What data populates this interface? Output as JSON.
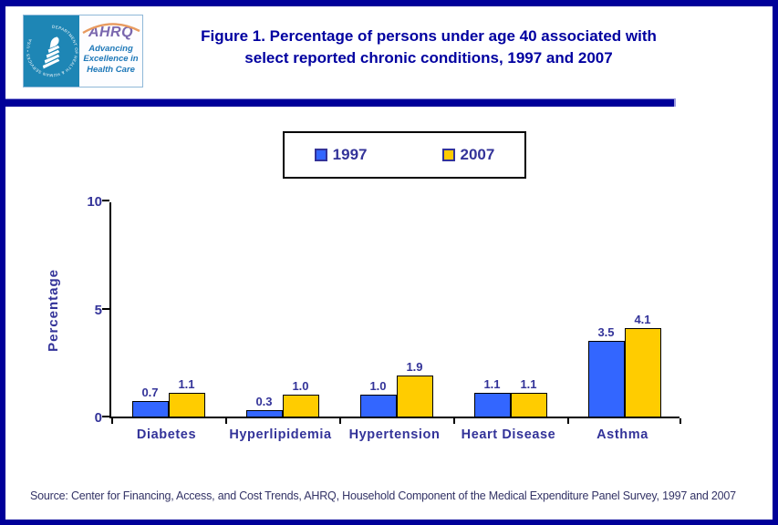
{
  "logo": {
    "hhs_circle_text": "DEPARTMENT OF HEALTH & HUMAN SERVICES • USA",
    "ahrq_word": "AHRQ",
    "tagline": "Advancing\nExcellence in\nHealth Care"
  },
  "header": {
    "title_line1": "Figure 1. Percentage of persons under age 40 associated with",
    "title_line2": "select reported chronic conditions, 1997 and 2007"
  },
  "chart_data": {
    "type": "bar",
    "title": "Figure 1. Percentage of persons under age 40 associated with select reported chronic conditions, 1997 and 2007",
    "categories": [
      "Diabetes",
      "Hyperlipidemia",
      "Hypertension",
      "Heart Disease",
      "Asthma"
    ],
    "series": [
      {
        "name": "1997",
        "color": "#3366FF",
        "values": [
          0.7,
          0.3,
          1.0,
          1.1,
          3.5
        ]
      },
      {
        "name": "2007",
        "color": "#FFCC00",
        "values": [
          1.1,
          1.0,
          1.9,
          1.1,
          4.1
        ]
      }
    ],
    "xlabel": "",
    "ylabel": "Percentage",
    "ylim": [
      0,
      10
    ],
    "yticks": [
      0,
      5,
      10
    ],
    "grid": false,
    "data_labels": true,
    "legend_position": "top-center",
    "bar_border_color": "#000000",
    "axis_color": "#000000",
    "text_color": "#333399",
    "title_color": "#0000A0",
    "frame_color": "#000099"
  },
  "footer": {
    "source": "Source: Center for Financing, Access, and Cost Trends, AHRQ, Household Component of the Medical Expenditure Panel Survey, 1997 and 2007"
  }
}
